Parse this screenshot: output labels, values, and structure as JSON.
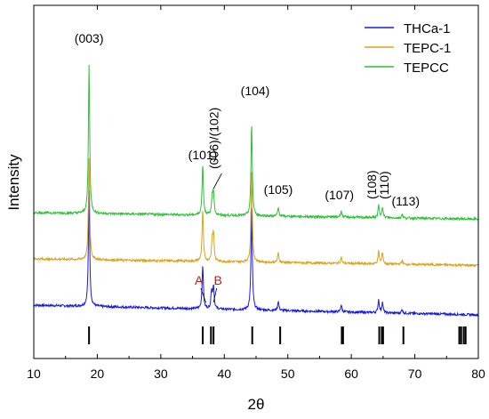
{
  "chart_data": {
    "type": "line",
    "xlabel": "2θ",
    "ylabel": "Intensity",
    "xlim": [
      10,
      80
    ],
    "xticks": [
      10,
      20,
      30,
      40,
      50,
      60,
      70,
      80
    ],
    "y_ticks_shown": false,
    "grid": false,
    "legend_position": "top-right",
    "series": [
      {
        "name": "THCa-1",
        "color": "#1a1adf",
        "baseline": 1.0,
        "slope": -0.003,
        "peaks": [
          {
            "x": 18.7,
            "h": 2.5
          },
          {
            "x": 36.6,
            "h": 0.95
          },
          {
            "x": 38.0,
            "h": 0.4
          },
          {
            "x": 38.3,
            "h": 0.5
          },
          {
            "x": 44.3,
            "h": 2.25
          },
          {
            "x": 48.5,
            "h": 0.2
          },
          {
            "x": 58.4,
            "h": 0.15
          },
          {
            "x": 64.3,
            "h": 0.28
          },
          {
            "x": 64.9,
            "h": 0.22
          },
          {
            "x": 68.0,
            "h": 0.08
          }
        ]
      },
      {
        "name": "TEPC-1",
        "color": "#d9a520",
        "baseline": 2.0,
        "slope": -0.002,
        "peaks": [
          {
            "x": 18.7,
            "h": 2.2
          },
          {
            "x": 36.6,
            "h": 1.1
          },
          {
            "x": 38.1,
            "h": 0.45
          },
          {
            "x": 38.3,
            "h": 0.55
          },
          {
            "x": 44.3,
            "h": 2.0
          },
          {
            "x": 48.5,
            "h": 0.2
          },
          {
            "x": 58.4,
            "h": 0.14
          },
          {
            "x": 64.3,
            "h": 0.27
          },
          {
            "x": 64.9,
            "h": 0.25
          },
          {
            "x": 68.0,
            "h": 0.08
          }
        ]
      },
      {
        "name": "TEPCC",
        "color": "#2fc13a",
        "baseline": 3.0,
        "slope": -0.002,
        "peaks": [
          {
            "x": 18.7,
            "h": 3.2
          },
          {
            "x": 36.6,
            "h": 1.1
          },
          {
            "x": 38.1,
            "h": 0.4
          },
          {
            "x": 38.3,
            "h": 0.45
          },
          {
            "x": 44.3,
            "h": 2.0
          },
          {
            "x": 48.5,
            "h": 0.18
          },
          {
            "x": 58.4,
            "h": 0.14
          },
          {
            "x": 64.3,
            "h": 0.26
          },
          {
            "x": 64.9,
            "h": 0.24
          },
          {
            "x": 68.0,
            "h": 0.08
          }
        ]
      }
    ],
    "reference_ticks": [
      18.7,
      36.6,
      37.9,
      38.3,
      44.4,
      48.8,
      58.5,
      58.7,
      64.4,
      64.8,
      65.0,
      68.2,
      77.0,
      77.3,
      77.7,
      78.0
    ],
    "annotations": [
      {
        "text": "(003)",
        "x": 18.7
      },
      {
        "text": "(101)",
        "x": 36.6
      },
      {
        "text": "(006)/(102)",
        "x": 38.2,
        "rotated": true
      },
      {
        "text": "(104)",
        "x": 44.3
      },
      {
        "text": "(105)",
        "x": 48.5
      },
      {
        "text": "(107)",
        "x": 58.4
      },
      {
        "text": "(108)",
        "x": 64.2,
        "rotated": true
      },
      {
        "text": "(110)",
        "x": 65.0,
        "rotated": true
      },
      {
        "text": "(113)",
        "x": 68.0
      },
      {
        "text": "A",
        "x": 36.0,
        "color": "#b22222"
      },
      {
        "text": "B",
        "x": 39.0,
        "color": "#b22222"
      }
    ]
  }
}
